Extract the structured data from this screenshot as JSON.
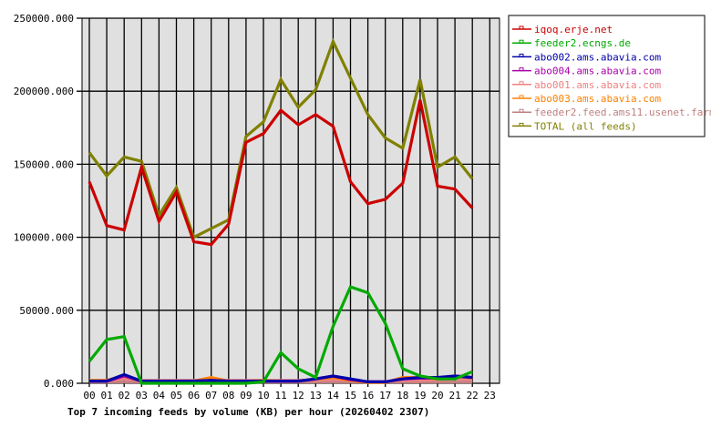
{
  "chart_data": {
    "type": "line",
    "title": "Top 7 incoming feeds by volume (KB) per hour (20260402 2307)",
    "xlabel": "",
    "ylabel": "",
    "ylim": [
      0,
      250000
    ],
    "yticks": [
      "0.000",
      "50000.000",
      "100000.000",
      "150000.000",
      "200000.000",
      "250000.000"
    ],
    "x": [
      "00",
      "01",
      "02",
      "03",
      "04",
      "05",
      "06",
      "07",
      "08",
      "09",
      "10",
      "11",
      "12",
      "13",
      "14",
      "15",
      "16",
      "17",
      "18",
      "19",
      "20",
      "21",
      "22",
      "23"
    ],
    "grid": true,
    "legend_position": "right",
    "series": [
      {
        "name": "iqoq.erje.net",
        "color": "#cc0000",
        "values": [
          138000,
          108000,
          105000,
          148000,
          111000,
          131000,
          97000,
          95000,
          109000,
          165000,
          171000,
          187000,
          177000,
          184000,
          176000,
          138000,
          123000,
          126000,
          137000,
          194000,
          135000,
          133000,
          120000
        ]
      },
      {
        "name": "feeder2.ecngs.de",
        "color": "#00aa00",
        "values": [
          15000,
          30000,
          32000,
          0,
          0,
          0,
          0,
          0,
          0,
          0,
          1000,
          21000,
          10000,
          4000,
          39000,
          66000,
          62000,
          41000,
          10000,
          5000,
          3000,
          3000,
          8000
        ]
      },
      {
        "name": "abo002.ams.abavia.com",
        "color": "#0000aa",
        "values": [
          1500,
          1500,
          6000,
          1500,
          1500,
          1500,
          1500,
          2000,
          1500,
          1500,
          1500,
          1500,
          1500,
          3000,
          5000,
          3000,
          1000,
          1000,
          3000,
          4000,
          4000,
          5000,
          4000
        ]
      },
      {
        "name": "abo004.ams.abavia.com",
        "color": "#aa00aa",
        "values": [
          1500,
          1500,
          5000,
          1500,
          1500,
          1500,
          1500,
          2000,
          1500,
          1500,
          1500,
          1500,
          1500,
          3000,
          5000,
          2500,
          1000,
          1000,
          3000,
          3500,
          3500,
          5000,
          4000
        ]
      },
      {
        "name": "abo001.ams.abavia.com",
        "color": "#f08080",
        "values": [
          2000,
          2000,
          3000,
          2000,
          2000,
          2000,
          2000,
          2000,
          2000,
          2000,
          2000,
          2000,
          2000,
          2000,
          2500,
          2000,
          1000,
          1000,
          2000,
          2000,
          2500,
          3000,
          2500
        ]
      },
      {
        "name": "abo003.ams.abavia.com",
        "color": "#ff8000",
        "values": [
          2000,
          2000,
          5000,
          1500,
          1500,
          1500,
          1500,
          4000,
          1500,
          1500,
          2000,
          1500,
          1500,
          3000,
          4000,
          2000,
          500,
          500,
          4000,
          4000,
          3000,
          5000,
          4000
        ]
      },
      {
        "name": "feeder2.feed.ams11.usenet.farm",
        "color": "#c08080",
        "values": [
          800,
          800,
          800,
          800,
          800,
          800,
          800,
          800,
          800,
          800,
          800,
          800,
          800,
          800,
          800,
          800,
          800,
          800,
          800,
          800,
          800,
          800,
          800
        ]
      },
      {
        "name": "TOTAL (all feeds)",
        "color": "#808000",
        "values": [
          158000,
          142000,
          155000,
          152000,
          115000,
          134000,
          100000,
          106000,
          112000,
          169000,
          179000,
          208000,
          189000,
          201000,
          234000,
          209000,
          184000,
          168000,
          161000,
          208000,
          148000,
          155000,
          140000
        ]
      }
    ]
  }
}
